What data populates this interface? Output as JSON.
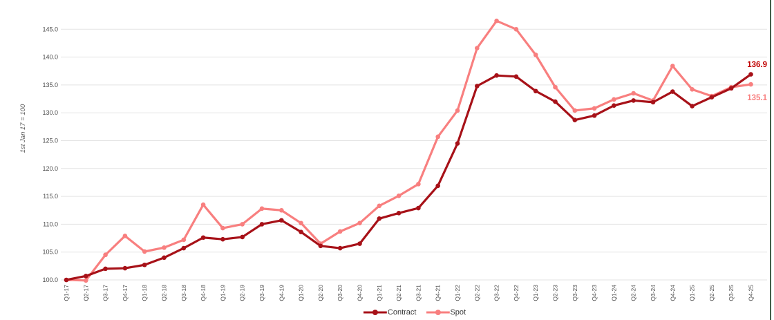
{
  "chart_data": {
    "type": "line",
    "title": "",
    "y_axis_title": "1st Jan 17 = 100",
    "xlabel": "",
    "ylabel": "1st Jan 17 = 100",
    "ylim": [
      100,
      145
    ],
    "y_tick_step": 5,
    "y_tick_labels": [
      "100.0",
      "105.0",
      "110.0",
      "115.0",
      "120.0",
      "125.0",
      "130.0",
      "135.0",
      "140.0",
      "145.0"
    ],
    "grid": "horizontal",
    "legend_position": "bottom-center",
    "categories": [
      "Q1-17",
      "Q2-17",
      "Q3-17",
      "Q4-17",
      "Q1-18",
      "Q2-18",
      "Q3-18",
      "Q4-18",
      "Q1-19",
      "Q2-19",
      "Q3-19",
      "Q4-19",
      "Q1-20",
      "Q2-20",
      "Q3-20",
      "Q4-20",
      "Q1-21",
      "Q2-21",
      "Q3-21",
      "Q4-21",
      "Q1-22",
      "Q2-22",
      "Q3-22",
      "Q4-22",
      "Q1-23",
      "Q2-23",
      "Q3-23",
      "Q4-23",
      "Q1-24",
      "Q2-24",
      "Q3-24",
      "Q4-24",
      "Q1-25",
      "Q2-25",
      "Q3-25",
      "Q4-25"
    ],
    "series": [
      {
        "name": "Contract",
        "color": "#A71118",
        "end_label": "136.9",
        "end_label_color": "#C00000",
        "values": [
          100.0,
          100.7,
          102.0,
          102.1,
          102.7,
          104.0,
          105.7,
          107.6,
          107.3,
          107.7,
          110.0,
          110.7,
          108.6,
          106.1,
          105.7,
          106.5,
          111.0,
          112.0,
          112.9,
          116.9,
          124.5,
          134.8,
          136.7,
          136.5,
          133.9,
          132.0,
          128.7,
          129.5,
          131.3,
          132.2,
          131.9,
          133.8,
          131.2,
          132.8,
          134.4,
          136.9
        ]
      },
      {
        "name": "Spot",
        "color": "#F87F7F",
        "end_label": "135.1",
        "end_label_color": "#F87F7F",
        "values": [
          100.0,
          99.9,
          104.5,
          107.9,
          105.1,
          105.8,
          107.2,
          113.5,
          109.3,
          110.0,
          112.8,
          112.5,
          110.2,
          106.5,
          108.7,
          110.2,
          113.3,
          115.1,
          117.2,
          125.7,
          130.4,
          141.6,
          146.5,
          145.0,
          140.4,
          134.6,
          130.4,
          130.8,
          132.4,
          133.5,
          132.2,
          138.4,
          134.2,
          133.0,
          134.6,
          135.1
        ]
      }
    ]
  },
  "decor": {
    "grid_color": "#E3E3E3",
    "tick_label_color": "#4D4D4D",
    "axis_title_color": "#595959",
    "right_border_color": "#44604A"
  }
}
